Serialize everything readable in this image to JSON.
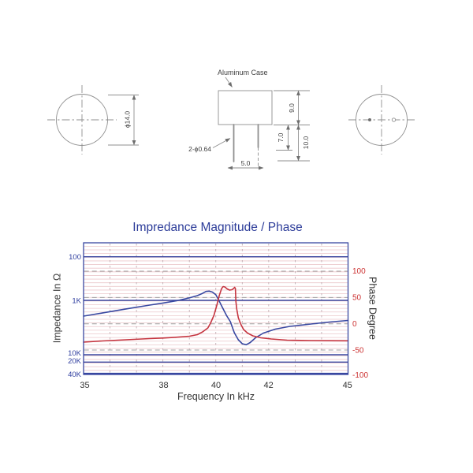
{
  "drawing": {
    "aluminum_case_label": "Aluminum Case",
    "pin_diameter_label": "2-ϕ0.64",
    "pin_spacing_label": "5.0",
    "pin_length_short_label": "7.0",
    "pin_length_long_label": "10.0",
    "case_height_label": "9.0",
    "diameter_label": "ϕ14.0"
  },
  "chart": {
    "title": "Impredance Magnitude / Phase",
    "x_axis": {
      "label": "Frequency In kHz",
      "ticks": [
        "35",
        "38",
        "40",
        "42",
        "45"
      ]
    },
    "left_axis": {
      "label": "Impedance In Ω",
      "ticks": [
        "100",
        "1K",
        "10K",
        "20K",
        "40K"
      ]
    },
    "right_axis": {
      "label": "Phase Degree",
      "ticks": [
        "100",
        "50",
        "0",
        "-50",
        "-100"
      ]
    },
    "colors": {
      "title": "#2c3c99",
      "impedance": "#3847a0",
      "phase": "#c53540",
      "left_tick_text": "#3140a0",
      "right_tick_text": "#cc3333",
      "fine_grid": "#ecc8cc",
      "dash_grid": "#a0a0a0",
      "vertical_dash_grid": "#b8a2a8"
    }
  },
  "chart_data": {
    "type": "line",
    "title": "Impredance Magnitude / Phase",
    "xlabel": "Frequency In kHz",
    "x_range": [
      35,
      45
    ],
    "x_ticks": [
      35,
      38,
      40,
      42,
      45
    ],
    "left_axis": {
      "label": "Impedance In Ω",
      "unit": "ohm",
      "scale": "log-increasing-downward",
      "ticks": [
        100,
        1000,
        10000,
        20000,
        40000
      ]
    },
    "right_axis": {
      "label": "Phase Degree",
      "unit": "degree",
      "scale": "linear",
      "ticks": [
        100,
        50,
        0,
        -50,
        -100
      ],
      "range": [
        100,
        -100
      ]
    },
    "grid": {
      "fine_horizontal_lines": true,
      "vertical_dashed_every_kHz": 1,
      "phase_gridlines_dashed": [
        100,
        50,
        0,
        -50
      ],
      "impedance_gridlines_solid": [
        100,
        1000,
        10000,
        20000,
        40000
      ]
    },
    "legend": "none",
    "series": [
      {
        "name": "Impedance",
        "axis": "left",
        "color": "#3847a0",
        "x": [
          35,
          35.7,
          36.6,
          37.5,
          38.0,
          38.5,
          39.0,
          39.3,
          39.5,
          39.63,
          39.75,
          39.87,
          40.0,
          40.1,
          40.25,
          40.4,
          40.55,
          40.7,
          40.85,
          41.0,
          41.15,
          41.3,
          41.5,
          41.8,
          42.25,
          42.8,
          43.6,
          44.3,
          45
        ],
        "y": [
          1950,
          1710,
          1440,
          1220,
          1120,
          1020,
          880,
          780,
          690,
          625,
          615,
          645,
          745,
          960,
          1350,
          1880,
          2460,
          3930,
          5310,
          6270,
          6550,
          5960,
          4880,
          3990,
          3380,
          3010,
          2720,
          2500,
          2340
        ]
      },
      {
        "name": "Phase",
        "axis": "right",
        "color": "#c53540",
        "x": [
          35,
          35.7,
          36.6,
          37.5,
          38.0,
          38.5,
          39.0,
          39.3,
          39.5,
          39.7,
          39.8,
          39.93,
          40.04,
          40.13,
          40.22,
          40.28,
          40.34,
          40.43,
          40.52,
          40.61,
          40.67,
          40.71,
          40.74,
          40.76,
          40.79,
          40.85,
          40.94,
          41.05,
          41.2,
          41.4,
          41.7,
          42.1,
          42.7,
          43.6,
          44.3,
          45
        ],
        "y": [
          -35,
          -32.7,
          -30.4,
          -28.2,
          -27.1,
          -25.6,
          -23.7,
          -20.7,
          -15.4,
          -7.9,
          1,
          16,
          35.5,
          53.5,
          67,
          70.8,
          70,
          66.3,
          64,
          64.8,
          67,
          69.3,
          67,
          43,
          28,
          11.5,
          -0.5,
          -11,
          -17.7,
          -22.9,
          -26.7,
          -28.9,
          -31.2,
          -31.9,
          -32.2,
          -32.4
        ]
      }
    ]
  }
}
